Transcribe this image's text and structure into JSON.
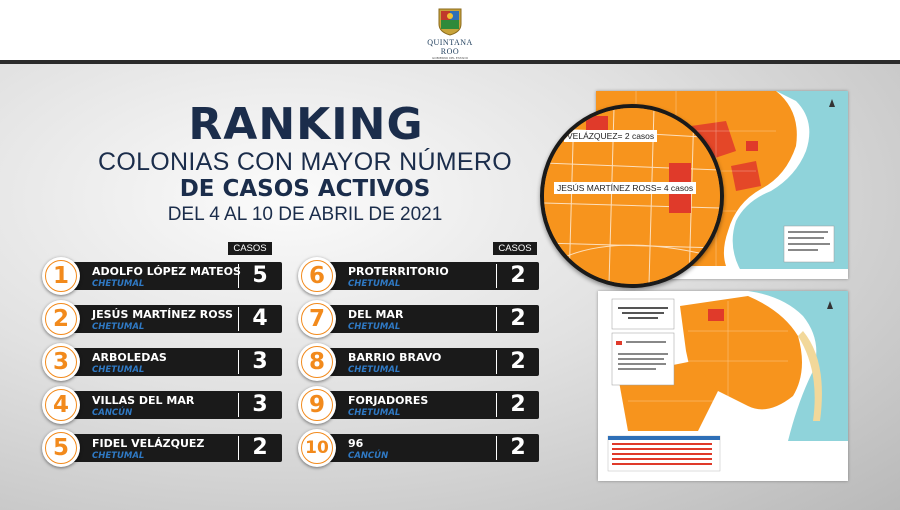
{
  "logo": {
    "text": "QUINTANA ROO",
    "subtext": "GOBIERNO DEL ESTADO"
  },
  "heading": {
    "title": "RANKING",
    "line1": "COLONIAS CON MAYOR NÚMERO",
    "line2": "DE CASOS ACTIVOS",
    "line3": "DEL 4 AL 10 DE ABRIL DE 2021"
  },
  "casos_label": "CASOS",
  "ranking": [
    {
      "rank": "1",
      "colonia": "ADOLFO LÓPEZ MATEOS",
      "ciudad": "CHETUMAL",
      "casos": "5"
    },
    {
      "rank": "2",
      "colonia": "JESÚS MARTÍNEZ ROSS",
      "ciudad": "CHETUMAL",
      "casos": "4"
    },
    {
      "rank": "3",
      "colonia": "ARBOLEDAS",
      "ciudad": "CHETUMAL",
      "casos": "3"
    },
    {
      "rank": "4",
      "colonia": "VILLAS DEL MAR",
      "ciudad": "CANCÚN",
      "casos": "3"
    },
    {
      "rank": "5",
      "colonia": "FIDEL VELÁZQUEZ",
      "ciudad": "CHETUMAL",
      "casos": "2"
    },
    {
      "rank": "6",
      "colonia": "PROTERRITORIO",
      "ciudad": "CHETUMAL",
      "casos": "2"
    },
    {
      "rank": "7",
      "colonia": "DEL MAR",
      "ciudad": "CHETUMAL",
      "casos": "2"
    },
    {
      "rank": "8",
      "colonia": "BARRIO BRAVO",
      "ciudad": "CHETUMAL",
      "casos": "2"
    },
    {
      "rank": "9",
      "colonia": "FORJADORES",
      "ciudad": "CHETUMAL",
      "casos": "2"
    },
    {
      "rank": "10",
      "colonia": "96",
      "ciudad": "CANCÚN",
      "casos": "2"
    }
  ],
  "map_zoom": {
    "label1": "VELÁZQUEZ= 2 casos",
    "label2": "JESÚS MARTÍNEZ ROSS= 4 casos"
  },
  "colors": {
    "navy": "#1b2d4b",
    "orange": "#f28a1c",
    "bar": "#1a1a1a",
    "city_blue": "#2f79c4",
    "sea": "#8fd3da"
  }
}
